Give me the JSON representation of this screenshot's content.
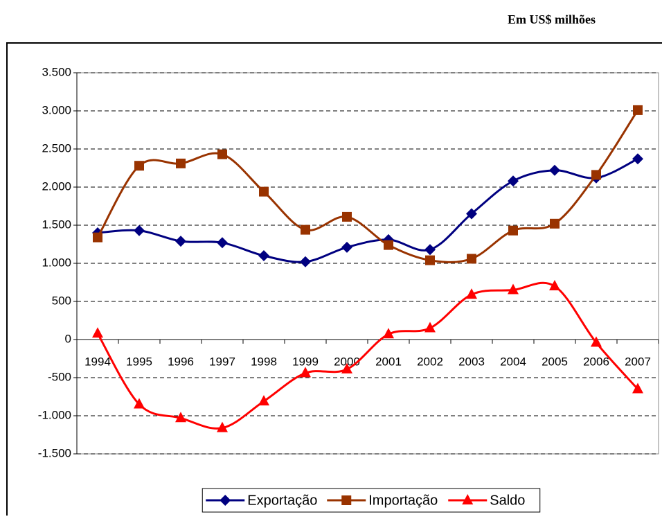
{
  "chart_data": {
    "type": "line",
    "title": "Em US$ milhões",
    "categories": [
      "1994",
      "1995",
      "1996",
      "1997",
      "1998",
      "1999",
      "2000",
      "2001",
      "2002",
      "2003",
      "2004",
      "2005",
      "2006",
      "2007"
    ],
    "series": [
      {
        "name": "Exportação",
        "color": "#000080",
        "marker": "diamond",
        "values": [
          1400,
          1430,
          1290,
          1270,
          1100,
          1020,
          1210,
          1310,
          1180,
          1650,
          2080,
          2220,
          2120,
          2370
        ]
      },
      {
        "name": "Importação",
        "color": "#993300",
        "marker": "square",
        "values": [
          1340,
          2280,
          2310,
          2430,
          1940,
          1440,
          1610,
          1240,
          1040,
          1060,
          1430,
          1520,
          2160,
          3010
        ]
      },
      {
        "name": "Saldo",
        "color": "#ff0000",
        "marker": "triangle",
        "values": [
          80,
          -850,
          -1030,
          -1160,
          -810,
          -440,
          -390,
          70,
          150,
          590,
          650,
          700,
          -40,
          -650
        ]
      }
    ],
    "ylim": [
      -1500,
      3500
    ],
    "yticks": [
      {
        "value": -1500,
        "label": "-1.500"
      },
      {
        "value": -1000,
        "label": "-1.000"
      },
      -500,
      0,
      500,
      {
        "value": 1000,
        "label": "1.000"
      },
      {
        "value": 1500,
        "label": "1.500"
      },
      {
        "value": 2000,
        "label": "2.000"
      },
      {
        "value": 2500,
        "label": "2.500"
      },
      {
        "value": 3000,
        "label": "3.000"
      },
      {
        "value": 3500,
        "label": "3.500"
      }
    ],
    "grid": true,
    "smooth": true,
    "legend": "bottom"
  }
}
